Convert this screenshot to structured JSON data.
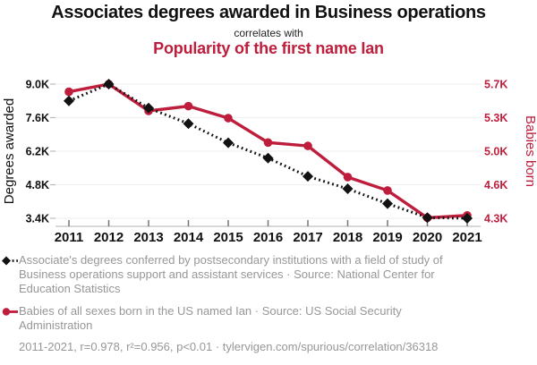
{
  "header": {
    "title": "Associates degrees awarded in Business operations",
    "connector": "correlates with",
    "subtitle": "Popularity of the first name Ian"
  },
  "colors": {
    "accent_red": "#be1e3c",
    "series_black": "#121212",
    "legend_gray": "#979797",
    "grid_line": "#f1f1f1",
    "axis_line": "#cccccc",
    "tick_mark": "#bbbbbb"
  },
  "chart_data": {
    "type": "line",
    "title": "Associates degrees awarded in Business operations correlates with Popularity of the first name Ian",
    "categories": [
      "2011",
      "2012",
      "2013",
      "2014",
      "2015",
      "2016",
      "2017",
      "2018",
      "2019",
      "2020",
      "2021"
    ],
    "series": [
      {
        "name": "Associate's degrees conferred in Business operations support",
        "axis": "left",
        "marker": "diamond",
        "line": "dotted",
        "color": "#121212",
        "values": [
          8300,
          9000,
          8000,
          7350,
          6550,
          5910,
          5150,
          4630,
          4010,
          3430,
          3400
        ]
      },
      {
        "name": "Babies of all sexes born in the US named Ian",
        "axis": "right",
        "marker": "circle",
        "line": "solid",
        "color": "#be1e3c",
        "values": [
          5620,
          5700,
          5420,
          5470,
          5345,
          5090,
          5055,
          4730,
          4590,
          4305,
          4330
        ]
      }
    ],
    "left_axis": {
      "label": "Degrees awarded",
      "tick_labels": [
        "9.0K",
        "7.6K",
        "6.2K",
        "4.8K",
        "3.4K"
      ],
      "tick_values": [
        9000,
        7600,
        6200,
        4800,
        3400
      ],
      "range": [
        3400,
        9000
      ]
    },
    "right_axis": {
      "label": "Babies born",
      "tick_labels": [
        "5.7K",
        "5.3K",
        "5.0K",
        "4.6K",
        "4.3K"
      ],
      "tick_values": [
        5700,
        5350,
        5000,
        4650,
        4300
      ],
      "range": [
        4300,
        5700
      ]
    },
    "grid": "horizontal",
    "legend_position": "below"
  },
  "legend": {
    "items": [
      {
        "marker": "black-diamond-dotted",
        "text": "Associate's degrees conferred by postsecondary institutions with a field of study of Business operations support and assistant services · Source: National Center for Education Statistics"
      },
      {
        "marker": "red-circle-solid",
        "text": "Babies of all sexes born in the US named Ian · Source: US Social Security Administration"
      }
    ],
    "stats": "2011-2021, r=0.978, r²=0.956, p<0.01 · tylervigen.com/spurious/correlation/36318"
  }
}
